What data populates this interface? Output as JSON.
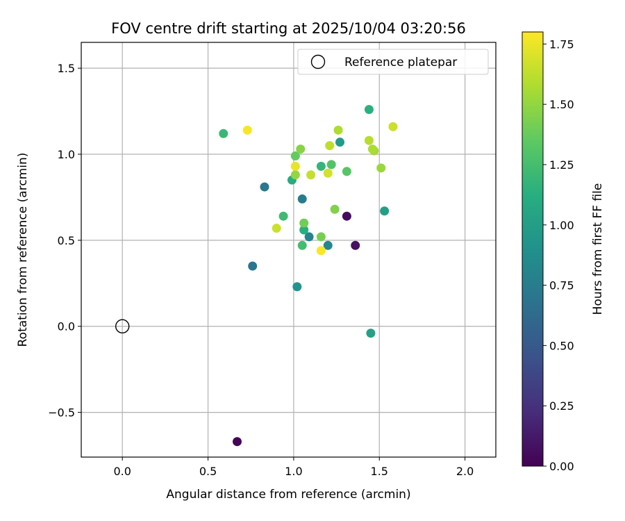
{
  "chart_data": {
    "type": "scatter",
    "title": "FOV centre drift starting at 2025/10/04 03:20:56",
    "xlabel": "Angular distance from reference (arcmin)",
    "ylabel": "Rotation from reference (arcmin)",
    "xlim": [
      -0.24,
      2.18
    ],
    "ylim": [
      -0.76,
      1.65
    ],
    "xticks": [
      0.0,
      0.5,
      1.0,
      1.5,
      2.0
    ],
    "xtick_labels": [
      "0.0",
      "0.5",
      "1.0",
      "1.5",
      "2.0"
    ],
    "yticks": [
      -0.5,
      0.0,
      0.5,
      1.0,
      1.5
    ],
    "ytick_labels": [
      "−0.5",
      "0.0",
      "0.5",
      "1.0",
      "1.5"
    ],
    "grid": true,
    "legend": {
      "position": "top-right",
      "entries": [
        "Reference platepar"
      ]
    },
    "reference_point": {
      "x": 0.0,
      "y": 0.0,
      "label": "Reference platepar"
    },
    "colorbar": {
      "label": "Hours from first FF file",
      "range": [
        0.0,
        1.8
      ],
      "ticks": [
        0.0,
        0.25,
        0.5,
        0.75,
        1.0,
        1.25,
        1.5,
        1.75
      ],
      "tick_labels": [
        "0.00",
        "0.25",
        "0.50",
        "0.75",
        "1.00",
        "1.25",
        "1.50",
        "1.75"
      ],
      "colormap": "viridis"
    },
    "points": [
      {
        "x": 0.67,
        "y": -0.67,
        "t": 0.02
      },
      {
        "x": 1.31,
        "y": 0.64,
        "t": 0.05
      },
      {
        "x": 1.36,
        "y": 0.47,
        "t": 0.08
      },
      {
        "x": 0.76,
        "y": 0.35,
        "t": 0.7
      },
      {
        "x": 0.83,
        "y": 0.81,
        "t": 0.72
      },
      {
        "x": 1.05,
        "y": 0.74,
        "t": 0.75
      },
      {
        "x": 1.09,
        "y": 0.52,
        "t": 0.8
      },
      {
        "x": 1.2,
        "y": 0.47,
        "t": 0.82
      },
      {
        "x": 1.02,
        "y": 0.23,
        "t": 0.92
      },
      {
        "x": 1.27,
        "y": 1.07,
        "t": 0.98
      },
      {
        "x": 1.53,
        "y": 0.67,
        "t": 1.0
      },
      {
        "x": 1.45,
        "y": -0.04,
        "t": 1.02
      },
      {
        "x": 0.99,
        "y": 0.85,
        "t": 1.1
      },
      {
        "x": 1.06,
        "y": 0.56,
        "t": 1.12
      },
      {
        "x": 1.44,
        "y": 1.26,
        "t": 1.14
      },
      {
        "x": 1.16,
        "y": 0.93,
        "t": 1.18
      },
      {
        "x": 0.59,
        "y": 1.12,
        "t": 1.2
      },
      {
        "x": 0.94,
        "y": 0.64,
        "t": 1.22
      },
      {
        "x": 1.05,
        "y": 0.47,
        "t": 1.24
      },
      {
        "x": 1.22,
        "y": 0.94,
        "t": 1.3
      },
      {
        "x": 1.31,
        "y": 0.9,
        "t": 1.32
      },
      {
        "x": 1.01,
        "y": 0.99,
        "t": 1.36
      },
      {
        "x": 1.06,
        "y": 0.6,
        "t": 1.4
      },
      {
        "x": 1.16,
        "y": 0.52,
        "t": 1.42
      },
      {
        "x": 1.24,
        "y": 0.68,
        "t": 1.45
      },
      {
        "x": 1.04,
        "y": 1.03,
        "t": 1.47
      },
      {
        "x": 1.01,
        "y": 0.88,
        "t": 1.5
      },
      {
        "x": 1.51,
        "y": 0.92,
        "t": 1.52
      },
      {
        "x": 1.47,
        "y": 1.02,
        "t": 1.55
      },
      {
        "x": 1.46,
        "y": 1.03,
        "t": 1.57
      },
      {
        "x": 1.26,
        "y": 1.14,
        "t": 1.58
      },
      {
        "x": 1.44,
        "y": 1.08,
        "t": 1.6
      },
      {
        "x": 1.21,
        "y": 1.05,
        "t": 1.62
      },
      {
        "x": 1.58,
        "y": 1.16,
        "t": 1.66
      },
      {
        "x": 1.1,
        "y": 0.88,
        "t": 1.64
      },
      {
        "x": 1.2,
        "y": 0.89,
        "t": 1.68
      },
      {
        "x": 0.9,
        "y": 0.57,
        "t": 1.66
      },
      {
        "x": 1.01,
        "y": 0.93,
        "t": 1.74
      },
      {
        "x": 0.73,
        "y": 1.14,
        "t": 1.78
      },
      {
        "x": 1.16,
        "y": 0.44,
        "t": 1.79
      }
    ]
  }
}
